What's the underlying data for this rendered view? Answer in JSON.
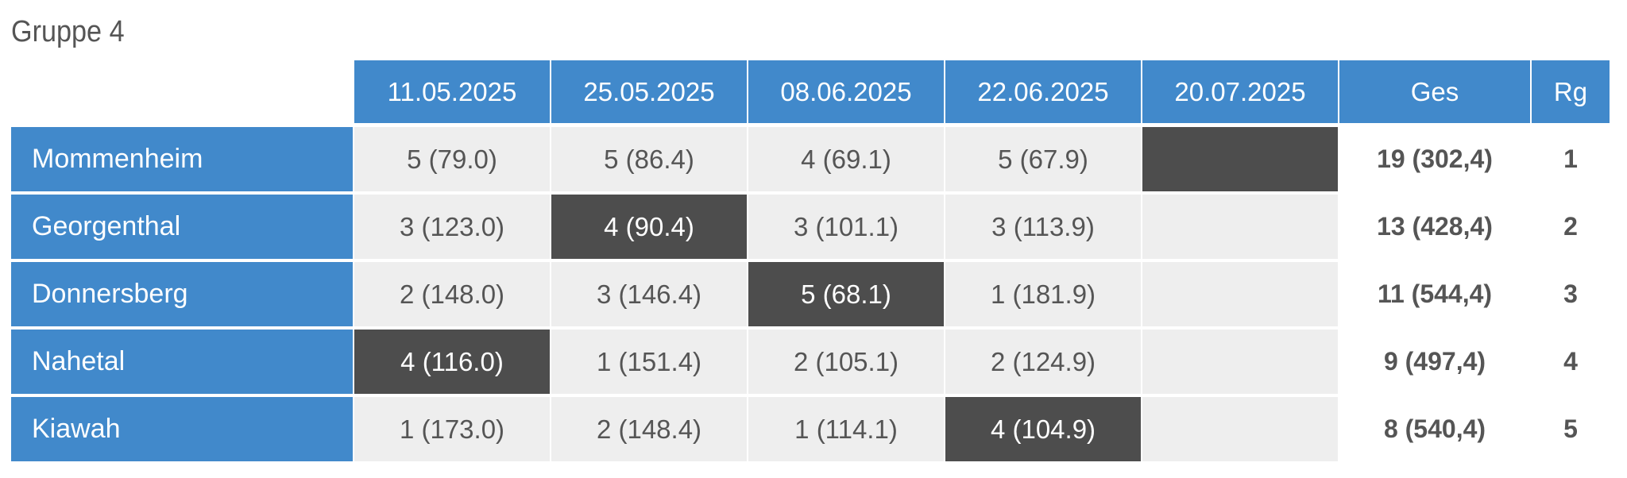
{
  "title": "Gruppe 4",
  "columns": [
    "11.05.2025",
    "25.05.2025",
    "08.06.2025",
    "22.06.2025",
    "20.07.2025",
    "Ges",
    "Rg"
  ],
  "rows": [
    {
      "team": "Mommenheim",
      "scores": [
        "5 (79.0)",
        "5 (86.4)",
        "4 (69.1)",
        "5 (67.9)",
        ""
      ],
      "host_col": 4,
      "total": "19 (302,4)",
      "rank": "1"
    },
    {
      "team": "Georgenthal",
      "scores": [
        "3 (123.0)",
        "4 (90.4)",
        "3 (101.1)",
        "3 (113.9)",
        ""
      ],
      "host_col": 1,
      "total": "13 (428,4)",
      "rank": "2"
    },
    {
      "team": "Donnersberg",
      "scores": [
        "2 (148.0)",
        "3 (146.4)",
        "5 (68.1)",
        "1 (181.9)",
        ""
      ],
      "host_col": 2,
      "total": "11 (544,4)",
      "rank": "3"
    },
    {
      "team": "Nahetal",
      "scores": [
        "4 (116.0)",
        "1 (151.4)",
        "2 (105.1)",
        "2 (124.9)",
        ""
      ],
      "host_col": 0,
      "total": "9 (497,4)",
      "rank": "4"
    },
    {
      "team": "Kiawah",
      "scores": [
        "1 (173.0)",
        "2 (148.4)",
        "1 (114.1)",
        "4 (104.9)",
        ""
      ],
      "host_col": 3,
      "total": "8 (540,4)",
      "rank": "5"
    }
  ],
  "colors": {
    "header": "#4189cb",
    "host_cell": "#4d4d4d",
    "score_cell": "#eeeeee",
    "text": "#555555"
  }
}
